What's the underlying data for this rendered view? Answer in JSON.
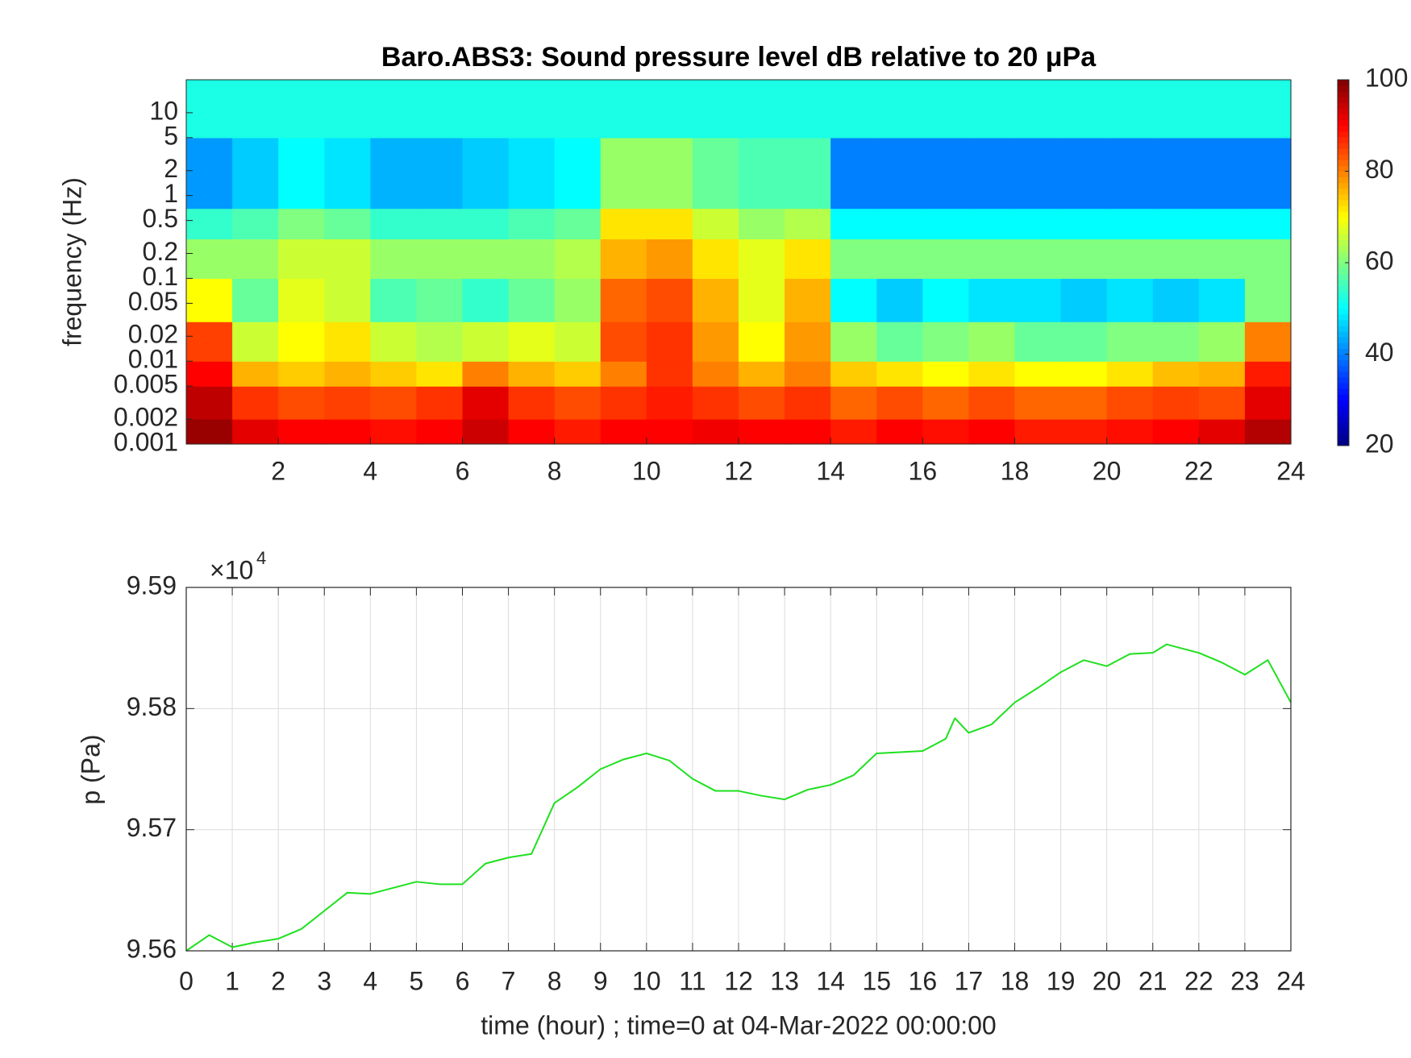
{
  "chart_data": [
    {
      "type": "heatmap",
      "title": "Baro.ABS3: Sound pressure level dB relative to 20 μPa",
      "ylabel": "frequency (Hz)",
      "yscale": "log",
      "colormap": "jet",
      "xlim": [
        0,
        24
      ],
      "xticks": [
        2,
        4,
        6,
        8,
        10,
        12,
        14,
        16,
        18,
        20,
        22,
        24
      ],
      "ylim": [
        0.001,
        25
      ],
      "yticks": [
        0.001,
        0.002,
        0.005,
        0.01,
        0.02,
        0.05,
        0.1,
        0.2,
        0.5,
        1,
        2,
        5,
        10
      ],
      "x_edges": [
        0,
        1,
        2,
        3,
        4,
        5,
        6,
        7,
        8,
        9,
        10,
        11,
        12,
        13,
        14,
        15,
        16,
        17,
        18,
        19,
        20,
        21,
        22,
        23,
        24
      ],
      "y_edges": [
        0.001,
        0.002,
        0.005,
        0.01,
        0.03,
        0.1,
        0.3,
        0.7,
        5,
        25
      ],
      "z": [
        [
          98,
          92,
          90,
          90,
          89,
          90,
          94,
          90,
          88,
          90,
          90,
          91,
          90,
          90,
          88,
          90,
          89,
          90,
          88,
          88,
          89,
          90,
          92,
          96
        ],
        [
          95,
          86,
          84,
          85,
          84,
          86,
          92,
          86,
          84,
          86,
          88,
          86,
          84,
          86,
          82,
          84,
          82,
          84,
          82,
          82,
          84,
          85,
          84,
          92
        ],
        [
          90,
          76,
          74,
          76,
          74,
          72,
          80,
          76,
          74,
          80,
          86,
          80,
          76,
          80,
          74,
          72,
          70,
          72,
          70,
          70,
          72,
          75,
          76,
          88
        ],
        [
          85,
          66,
          70,
          72,
          66,
          64,
          66,
          68,
          66,
          84,
          86,
          78,
          70,
          78,
          62,
          58,
          60,
          62,
          58,
          58,
          60,
          60,
          62,
          80
        ],
        [
          70,
          58,
          68,
          66,
          56,
          58,
          54,
          58,
          62,
          82,
          84,
          76,
          68,
          76,
          50,
          46,
          50,
          48,
          48,
          46,
          48,
          46,
          48,
          60
        ],
        [
          62,
          62,
          66,
          66,
          62,
          62,
          62,
          62,
          64,
          76,
          78,
          72,
          68,
          72,
          60,
          60,
          60,
          60,
          60,
          60,
          60,
          60,
          60,
          60
        ],
        [
          54,
          56,
          60,
          58,
          54,
          54,
          54,
          56,
          58,
          72,
          72,
          66,
          62,
          64,
          50,
          50,
          50,
          50,
          50,
          50,
          50,
          50,
          50,
          50
        ],
        [
          42,
          46,
          50,
          48,
          44,
          44,
          46,
          48,
          50,
          62,
          62,
          58,
          56,
          56,
          40,
          40,
          40,
          40,
          40,
          40,
          40,
          40,
          40,
          40
        ],
        [
          52,
          52,
          52,
          52,
          52,
          52,
          52,
          52,
          52,
          52,
          52,
          52,
          52,
          52,
          52,
          52,
          52,
          52,
          52,
          52,
          52,
          52,
          52,
          52
        ]
      ],
      "colorbar": {
        "lim": [
          20,
          100
        ],
        "ticks": [
          20,
          40,
          60,
          80,
          100
        ]
      }
    },
    {
      "type": "line",
      "xlabel": "time (hour) ; time=0 at 04-Mar-2022 00:00:00",
      "ylabel": "p (Pa)",
      "grid": true,
      "xlim": [
        0,
        24
      ],
      "xticks": [
        0,
        1,
        2,
        3,
        4,
        5,
        6,
        7,
        8,
        9,
        10,
        11,
        12,
        13,
        14,
        15,
        16,
        17,
        18,
        19,
        20,
        21,
        22,
        23,
        24
      ],
      "ylim": [
        95600,
        95900
      ],
      "yticks": [
        {
          "value": 95600,
          "label": "9.56"
        },
        {
          "value": 95700,
          "label": "9.57"
        },
        {
          "value": 95800,
          "label": "9.58"
        },
        {
          "value": 95900,
          "label": "9.59"
        }
      ],
      "ymultiplier": {
        "label": "×10",
        "exponent": 4
      },
      "x": [
        0,
        0.5,
        1,
        1.5,
        2,
        2.5,
        3,
        3.5,
        4,
        4.5,
        5,
        5.5,
        6,
        6.5,
        7,
        7.5,
        8,
        8.5,
        9,
        9.5,
        10,
        10.5,
        11,
        11.5,
        12,
        12.5,
        13,
        13.5,
        14,
        14.5,
        15,
        15.5,
        16,
        16.5,
        16.7,
        17,
        17.5,
        18,
        18.5,
        19,
        19.5,
        20,
        20.5,
        21,
        21.3,
        22,
        22.5,
        23,
        23.5,
        24
      ],
      "series": [
        {
          "color": "#1ee01e",
          "values": [
            95600,
            95613,
            95603,
            95607,
            95610,
            95618,
            95633,
            95648,
            95647,
            95652,
            95657,
            95655,
            95655,
            95672,
            95677,
            95680,
            95722,
            95735,
            95750,
            95758,
            95763,
            95757,
            95742,
            95732,
            95732,
            95728,
            95725,
            95733,
            95737,
            95745,
            95763,
            95764,
            95765,
            95775,
            95792,
            95780,
            95787,
            95805,
            95817,
            95830,
            95840,
            95835,
            95845,
            95846,
            95853,
            95846,
            95838,
            95828,
            95840,
            95805
          ]
        }
      ]
    }
  ]
}
